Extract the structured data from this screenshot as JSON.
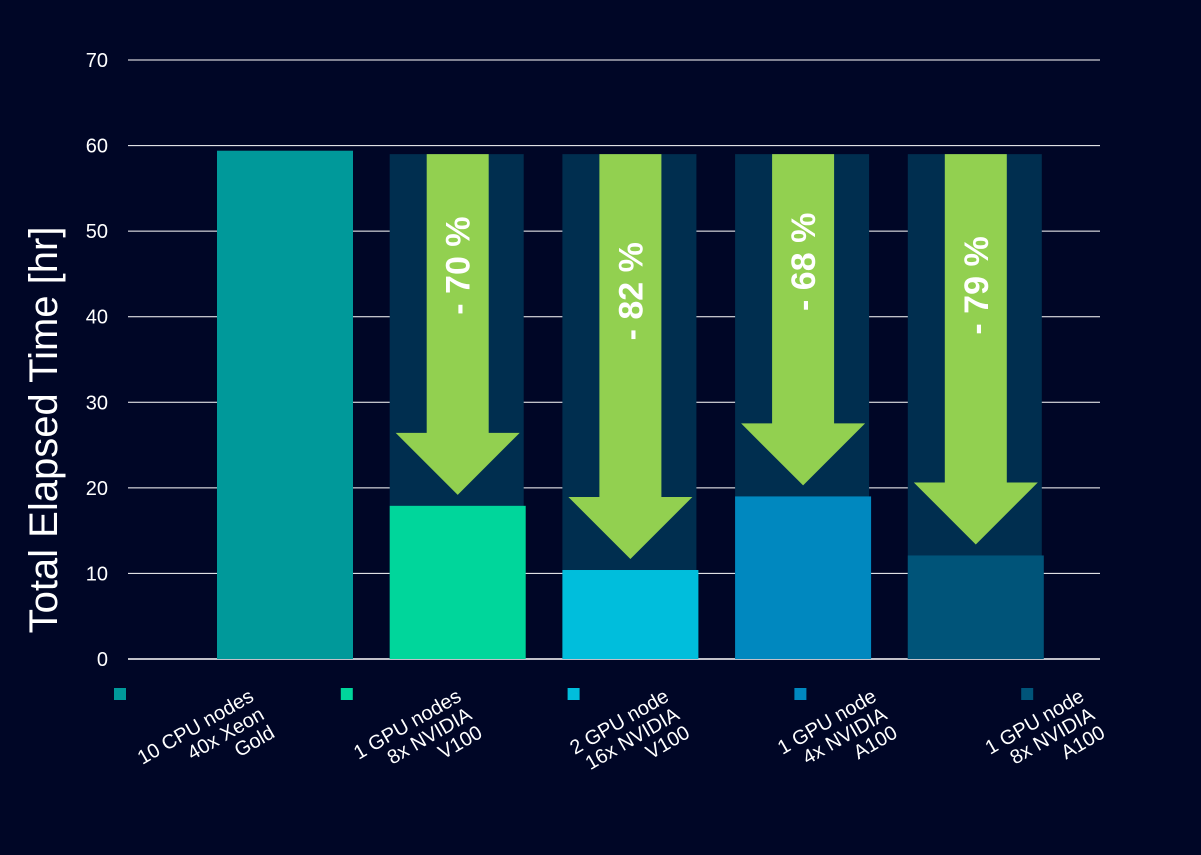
{
  "chart_data": {
    "type": "bar",
    "title": "",
    "xlabel": "",
    "ylabel": "Total Elapsed Time [hr]",
    "ylim": [
      0,
      70
    ],
    "yticks": [
      0,
      10,
      20,
      30,
      40,
      50,
      60,
      70
    ],
    "grid": true,
    "baseline_value": 59,
    "categories": [
      [
        "10 CPU nodes",
        "40x Xeon",
        "Gold"
      ],
      [
        "1 GPU nodes",
        "8x NVIDIA",
        "V100"
      ],
      [
        "2 GPU node",
        "16x NVIDIA",
        "V100"
      ],
      [
        "1 GPU node",
        "4x NVIDIA",
        "A100"
      ],
      [
        "1 GPU node",
        "8x NVIDIA",
        "A100"
      ]
    ],
    "values": [
      59.4,
      17.9,
      10.4,
      19.0,
      12.1
    ],
    "reductions": [
      "",
      "- 70 %",
      "- 82 %",
      "- 68 %",
      "- 79 %"
    ],
    "colors": [
      "#00999A",
      "#00D69B",
      "#00BEDC",
      "#0088BF",
      "#005479"
    ],
    "ghost_color": "#002E4F",
    "arrow_color": "#92D050",
    "legend_position": "bottom"
  }
}
